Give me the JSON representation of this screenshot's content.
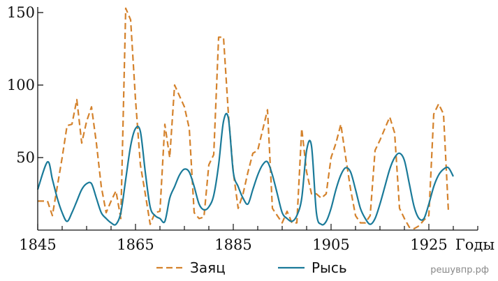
{
  "chart_data": {
    "type": "line",
    "x_unit_label": "Годы",
    "xlim": [
      1845,
      1935
    ],
    "ylim": [
      0,
      150
    ],
    "x_ticks": [
      1845,
      1865,
      1885,
      1905,
      1925
    ],
    "y_ticks": [
      50,
      100,
      150
    ],
    "grid": false,
    "legend_position": "bottom-center",
    "series": [
      {
        "name": "Заяц",
        "color": "#D4822C",
        "style": "dashed",
        "points": [
          [
            1845,
            20
          ],
          [
            1847,
            20
          ],
          [
            1848,
            10
          ],
          [
            1849,
            30
          ],
          [
            1850,
            50
          ],
          [
            1851,
            72
          ],
          [
            1852,
            73
          ],
          [
            1853,
            90
          ],
          [
            1854,
            60
          ],
          [
            1855,
            75
          ],
          [
            1856,
            85
          ],
          [
            1857,
            60
          ],
          [
            1858,
            30
          ],
          [
            1859,
            12
          ],
          [
            1860,
            20
          ],
          [
            1861,
            27
          ],
          [
            1862,
            8
          ],
          [
            1863,
            153
          ],
          [
            1864,
            145
          ],
          [
            1865,
            90
          ],
          [
            1866,
            45
          ],
          [
            1867,
            25
          ],
          [
            1868,
            4
          ],
          [
            1869,
            12
          ],
          [
            1870,
            13
          ],
          [
            1871,
            73
          ],
          [
            1872,
            50
          ],
          [
            1873,
            100
          ],
          [
            1875,
            85
          ],
          [
            1876,
            70
          ],
          [
            1877,
            12
          ],
          [
            1878,
            8
          ],
          [
            1879,
            9
          ],
          [
            1880,
            45
          ],
          [
            1881,
            52
          ],
          [
            1882,
            133
          ],
          [
            1883,
            133
          ],
          [
            1884,
            80
          ],
          [
            1885,
            40
          ],
          [
            1886,
            15
          ],
          [
            1887,
            25
          ],
          [
            1888,
            40
          ],
          [
            1889,
            53
          ],
          [
            1890,
            55
          ],
          [
            1892,
            83
          ],
          [
            1893,
            15
          ],
          [
            1894,
            10
          ],
          [
            1895,
            5
          ],
          [
            1896,
            13
          ],
          [
            1897,
            5
          ],
          [
            1898,
            5
          ],
          [
            1899,
            70
          ],
          [
            1900,
            40
          ],
          [
            1901,
            25
          ],
          [
            1902,
            25
          ],
          [
            1903,
            22
          ],
          [
            1904,
            25
          ],
          [
            1905,
            50
          ],
          [
            1906,
            60
          ],
          [
            1907,
            73
          ],
          [
            1908,
            50
          ],
          [
            1909,
            28
          ],
          [
            1910,
            10
          ],
          [
            1911,
            5
          ],
          [
            1912,
            5
          ],
          [
            1913,
            10
          ],
          [
            1914,
            55
          ],
          [
            1915,
            62
          ],
          [
            1916,
            70
          ],
          [
            1917,
            78
          ],
          [
            1918,
            67
          ],
          [
            1919,
            15
          ],
          [
            1920,
            8
          ],
          [
            1921,
            2
          ],
          [
            1922,
            1
          ],
          [
            1923,
            3
          ],
          [
            1924,
            7
          ],
          [
            1925,
            10
          ],
          [
            1926,
            80
          ],
          [
            1927,
            87
          ],
          [
            1928,
            80
          ],
          [
            1929,
            13
          ]
        ]
      },
      {
        "name": "Рысь",
        "color": "#1A7A99",
        "style": "solid",
        "points": [
          [
            1845,
            28
          ],
          [
            1847,
            47
          ],
          [
            1848,
            35
          ],
          [
            1849,
            22
          ],
          [
            1850,
            12
          ],
          [
            1851,
            6
          ],
          [
            1852,
            12
          ],
          [
            1853,
            20
          ],
          [
            1854,
            28
          ],
          [
            1855,
            32
          ],
          [
            1856,
            32
          ],
          [
            1857,
            22
          ],
          [
            1858,
            12
          ],
          [
            1859,
            8
          ],
          [
            1860,
            5
          ],
          [
            1861,
            4
          ],
          [
            1862,
            12
          ],
          [
            1863,
            35
          ],
          [
            1864,
            58
          ],
          [
            1865,
            70
          ],
          [
            1866,
            68
          ],
          [
            1867,
            40
          ],
          [
            1868,
            16
          ],
          [
            1869,
            10
          ],
          [
            1870,
            8
          ],
          [
            1871,
            6
          ],
          [
            1872,
            22
          ],
          [
            1873,
            30
          ],
          [
            1874,
            38
          ],
          [
            1875,
            42
          ],
          [
            1876,
            40
          ],
          [
            1877,
            30
          ],
          [
            1878,
            18
          ],
          [
            1879,
            14
          ],
          [
            1880,
            16
          ],
          [
            1881,
            24
          ],
          [
            1882,
            45
          ],
          [
            1883,
            75
          ],
          [
            1884,
            77
          ],
          [
            1885,
            40
          ],
          [
            1886,
            30
          ],
          [
            1887,
            22
          ],
          [
            1888,
            18
          ],
          [
            1889,
            28
          ],
          [
            1890,
            38
          ],
          [
            1891,
            45
          ],
          [
            1892,
            47
          ],
          [
            1893,
            38
          ],
          [
            1894,
            25
          ],
          [
            1895,
            12
          ],
          [
            1896,
            8
          ],
          [
            1897,
            6
          ],
          [
            1898,
            10
          ],
          [
            1899,
            22
          ],
          [
            1900,
            55
          ],
          [
            1901,
            58
          ],
          [
            1902,
            12
          ],
          [
            1903,
            4
          ],
          [
            1904,
            6
          ],
          [
            1905,
            15
          ],
          [
            1906,
            28
          ],
          [
            1907,
            38
          ],
          [
            1908,
            43
          ],
          [
            1909,
            40
          ],
          [
            1910,
            28
          ],
          [
            1911,
            15
          ],
          [
            1912,
            8
          ],
          [
            1913,
            4
          ],
          [
            1914,
            8
          ],
          [
            1915,
            18
          ],
          [
            1916,
            30
          ],
          [
            1917,
            42
          ],
          [
            1918,
            50
          ],
          [
            1919,
            53
          ],
          [
            1920,
            48
          ],
          [
            1921,
            32
          ],
          [
            1922,
            16
          ],
          [
            1923,
            8
          ],
          [
            1924,
            8
          ],
          [
            1925,
            18
          ],
          [
            1926,
            30
          ],
          [
            1927,
            38
          ],
          [
            1928,
            42
          ],
          [
            1929,
            43
          ],
          [
            1930,
            37
          ]
        ]
      }
    ]
  },
  "watermark": "решувпр.рф"
}
